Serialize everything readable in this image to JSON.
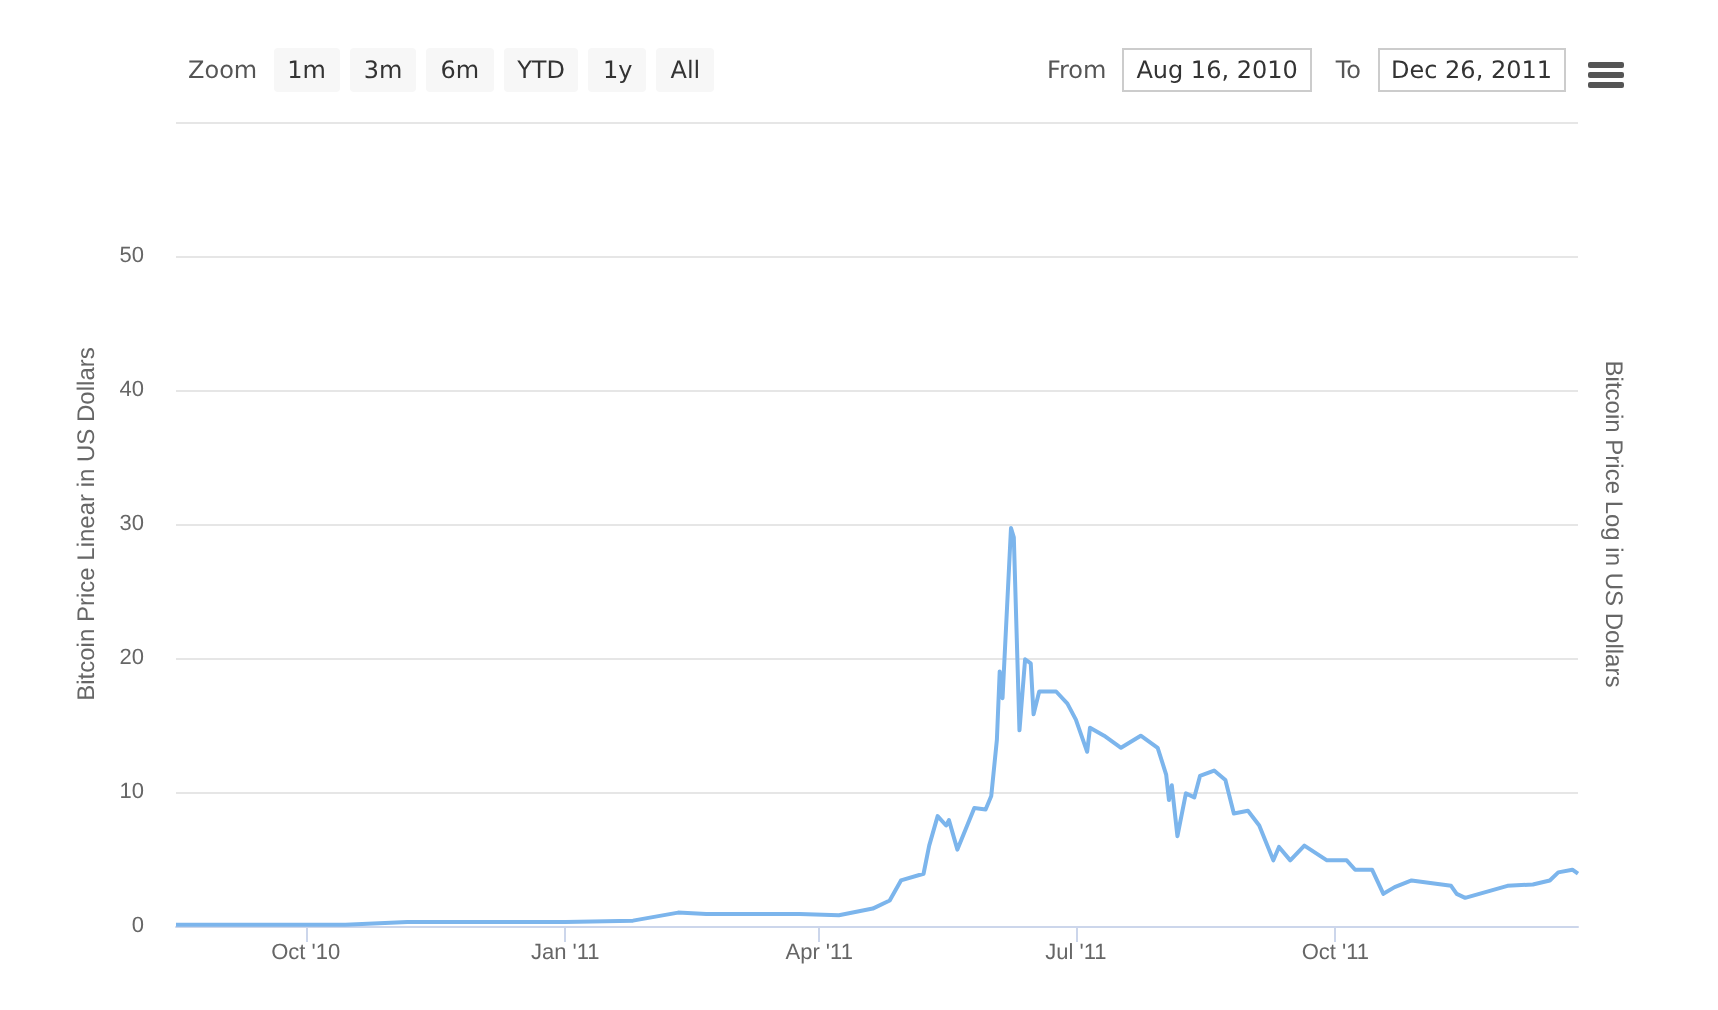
{
  "chart_data": {
    "type": "line",
    "ylabel": "Bitcoin Price Linear in US Dollars",
    "y2label": "Bitcoin Price Log in US Dollars",
    "annotations": [
      "Zoom",
      "1m",
      "3m",
      "6m",
      "YTD",
      "1y",
      "All",
      "From",
      "Aug 16, 2010",
      "To",
      "Dec 26, 2011"
    ],
    "xlim": [
      "2010-08-16",
      "2011-12-26"
    ],
    "xticks": [
      {
        "value": "2010-10-01",
        "label": "Oct '10"
      },
      {
        "value": "2011-01-01",
        "label": "Jan '11"
      },
      {
        "value": "2011-04-01",
        "label": "Apr '11"
      },
      {
        "value": "2011-07-01",
        "label": "Jul '11"
      },
      {
        "value": "2011-10-01",
        "label": "Oct '11"
      }
    ],
    "ylim": [
      0,
      60
    ],
    "yticks": [
      0,
      10,
      20,
      30,
      40,
      50,
      {
        "value": 60,
        "label": null
      }
    ],
    "grid": "y",
    "marker": "none",
    "line_style": "solid",
    "series": [
      {
        "color": "#7cb5ec",
        "x": [
          "2010-08-16",
          "2010-09-15",
          "2010-10-15",
          "2010-11-06",
          "2010-12-01",
          "2011-01-01",
          "2011-01-25",
          "2011-02-10",
          "2011-02-20",
          "2011-03-01",
          "2011-03-25",
          "2011-04-08",
          "2011-04-20",
          "2011-04-26",
          "2011-04-30",
          "2011-05-08",
          "2011-05-10",
          "2011-05-13",
          "2011-05-16",
          "2011-05-17",
          "2011-05-20",
          "2011-05-26",
          "2011-05-30",
          "2011-06-01",
          "2011-06-03",
          "2011-06-04",
          "2011-06-05",
          "2011-06-08",
          "2011-06-09",
          "2011-06-11",
          "2011-06-13",
          "2011-06-15",
          "2011-06-16",
          "2011-06-18",
          "2011-06-24",
          "2011-06-28",
          "2011-07-01",
          "2011-07-05",
          "2011-07-06",
          "2011-07-11",
          "2011-07-17",
          "2011-07-24",
          "2011-07-30",
          "2011-08-02",
          "2011-08-03",
          "2011-08-04",
          "2011-08-06",
          "2011-08-09",
          "2011-08-12",
          "2011-08-14",
          "2011-08-19",
          "2011-08-23",
          "2011-08-26",
          "2011-08-31",
          "2011-09-04",
          "2011-09-09",
          "2011-09-11",
          "2011-09-15",
          "2011-09-20",
          "2011-09-28",
          "2011-10-05",
          "2011-10-08",
          "2011-10-14",
          "2011-10-18",
          "2011-10-22",
          "2011-10-28",
          "2011-11-11",
          "2011-11-13",
          "2011-11-16",
          "2011-12-01",
          "2011-12-10",
          "2011-12-16",
          "2011-12-19",
          "2011-12-24",
          "2011-12-26"
        ],
        "values": [
          0.1,
          0.1,
          0.1,
          0.3,
          0.3,
          0.3,
          0.4,
          1.0,
          0.9,
          0.9,
          0.9,
          0.8,
          1.3,
          1.9,
          3.4,
          3.9,
          6,
          8.2,
          7.5,
          7.9,
          5.7,
          8.8,
          8.7,
          9.7,
          13.9,
          19,
          17,
          29.7,
          29,
          14.6,
          19.9,
          19.6,
          15.8,
          17.5,
          17.5,
          16.6,
          15.4,
          13,
          14.8,
          14.2,
          13.3,
          14.2,
          13.3,
          11.3,
          9.4,
          10.5,
          6.7,
          9.9,
          9.6,
          11.2,
          11.6,
          10.9,
          8.4,
          8.6,
          7.5,
          4.9,
          5.9,
          4.9,
          6,
          4.9,
          4.9,
          4.2,
          4.2,
          2.4,
          2.9,
          3.4,
          3.0,
          2.4,
          2.1,
          3.0,
          3.1,
          3.4,
          4.0,
          4.2,
          3.9
        ]
      }
    ]
  }
}
